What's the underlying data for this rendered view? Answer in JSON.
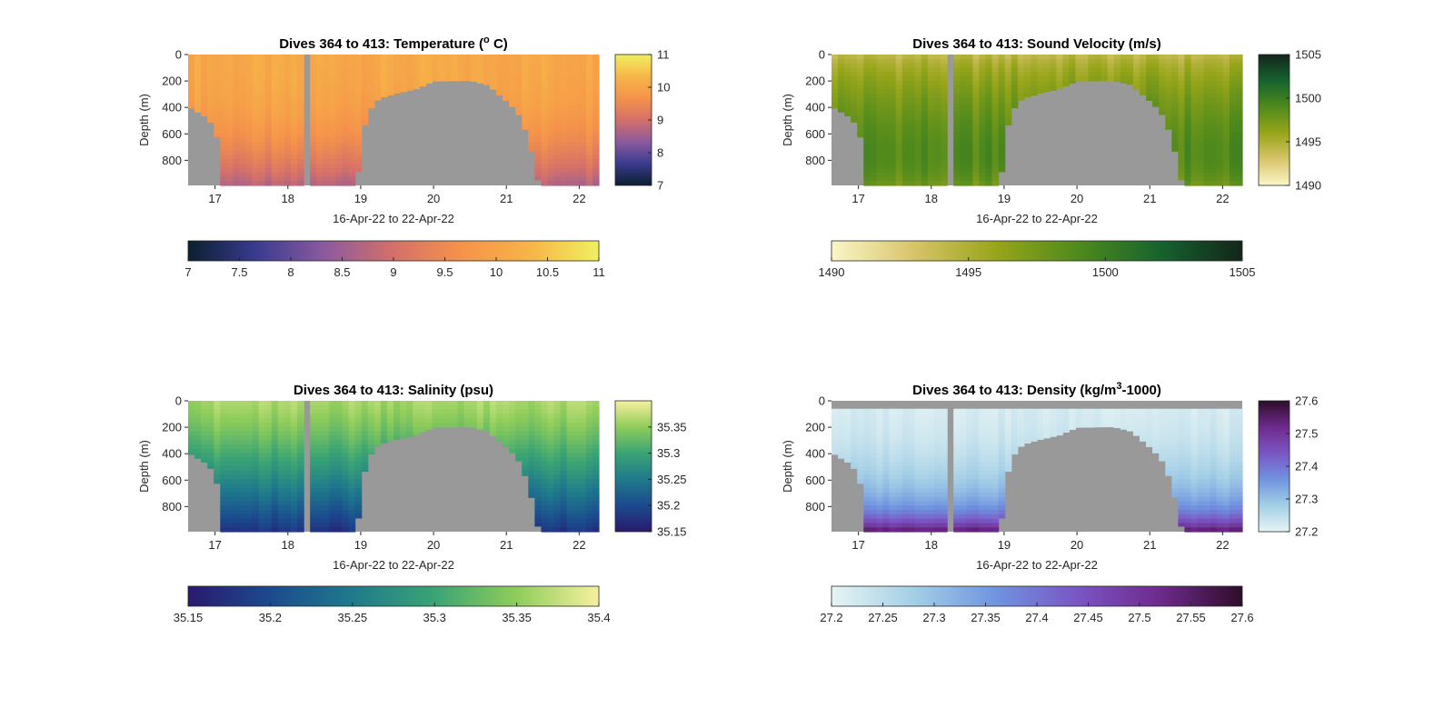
{
  "chart_data": [
    {
      "type": "heatmap",
      "title": "Dives 364 to 413: Temperature (",
      "title_sup": "o",
      "title_suffix": " C)",
      "xlabel": "16-Apr-22 to 22-Apr-22",
      "ylabel": "Depth (m)",
      "x_ticks": [
        "17",
        "18",
        "19",
        "20",
        "21",
        "22"
      ],
      "y_ticks": [
        "0",
        "200",
        "400",
        "600",
        "800"
      ],
      "xlim": [
        16.63,
        22.27
      ],
      "ylim": [
        0,
        990
      ],
      "colorscale": [
        "#0b1f30",
        "#3a3b8f",
        "#8b5a9e",
        "#d4706a",
        "#f5934a",
        "#f7b548",
        "#f0f060"
      ],
      "right_colorbar": {
        "range": [
          7,
          11
        ],
        "ticks": [
          "7",
          "8",
          "9",
          "10",
          "11"
        ]
      },
      "bottom_colorbar": {
        "range": [
          7,
          11
        ],
        "ticks": [
          "7",
          "7.5",
          "8",
          "8.5",
          "9",
          "9.5",
          "10",
          "10.5",
          "11"
        ]
      }
    },
    {
      "type": "heatmap",
      "title": "Dives 364 to 413: Sound Velocity (m/s)",
      "xlabel": "16-Apr-22 to 22-Apr-22",
      "ylabel": "Depth (m)",
      "x_ticks": [
        "17",
        "18",
        "19",
        "20",
        "21",
        "22"
      ],
      "y_ticks": [
        "0",
        "200",
        "400",
        "600",
        "800"
      ],
      "xlim": [
        16.63,
        22.27
      ],
      "ylim": [
        0,
        990
      ],
      "colorscale": [
        "#fbf6c8",
        "#d8c46a",
        "#98a51a",
        "#4f8a1c",
        "#16632e",
        "#13251a"
      ],
      "right_colorbar": {
        "range": [
          1490,
          1505
        ],
        "ticks": [
          "1490",
          "1495",
          "1500",
          "1505"
        ]
      },
      "bottom_colorbar": {
        "range": [
          1490,
          1505
        ],
        "ticks": [
          "1490",
          "1495",
          "1500",
          "1505"
        ]
      }
    },
    {
      "type": "heatmap",
      "title": "Dives 364 to 413: Salinity (psu)",
      "xlabel": "16-Apr-22 to 22-Apr-22",
      "ylabel": "Depth (m)",
      "x_ticks": [
        "17",
        "18",
        "19",
        "20",
        "21",
        "22"
      ],
      "y_ticks": [
        "0",
        "200",
        "400",
        "600",
        "800"
      ],
      "xlim": [
        16.63,
        22.27
      ],
      "ylim": [
        0,
        990
      ],
      "colorscale": [
        "#2a1a6e",
        "#1b4a8e",
        "#1f7a8c",
        "#3aa474",
        "#8fcd5a",
        "#f7f0a0"
      ],
      "right_colorbar": {
        "range": [
          35.15,
          35.4
        ],
        "ticks": [
          "35.15",
          "35.2",
          "35.25",
          "35.3",
          "35.35"
        ]
      },
      "bottom_colorbar": {
        "range": [
          35.15,
          35.4
        ],
        "ticks": [
          "35.15",
          "35.2",
          "35.25",
          "35.3",
          "35.35",
          "35.4"
        ]
      }
    },
    {
      "type": "heatmap",
      "title": "Dives 364 to 413: Density (kg/m",
      "title_sup": "3",
      "title_suffix": "-1000)",
      "xlabel": "16-Apr-22 to 22-Apr-22",
      "ylabel": "Depth (m)",
      "x_ticks": [
        "17",
        "18",
        "19",
        "20",
        "21",
        "22"
      ],
      "y_ticks": [
        "0",
        "200",
        "400",
        "600",
        "800"
      ],
      "xlim": [
        16.63,
        22.27
      ],
      "ylim": [
        0,
        990
      ],
      "colorscale": [
        "#e6f4f4",
        "#a4cfe6",
        "#6f94e0",
        "#7a55c4",
        "#6e2a8c",
        "#2e0d2a"
      ],
      "right_colorbar": {
        "range": [
          27.2,
          27.6
        ],
        "ticks": [
          "27.2",
          "27.3",
          "27.4",
          "27.5",
          "27.6"
        ]
      },
      "bottom_colorbar": {
        "range": [
          27.2,
          27.6
        ],
        "ticks": [
          "27.2",
          "27.25",
          "27.3",
          "27.35",
          "27.4",
          "27.45",
          "27.5",
          "27.55",
          "27.6"
        ]
      }
    }
  ]
}
